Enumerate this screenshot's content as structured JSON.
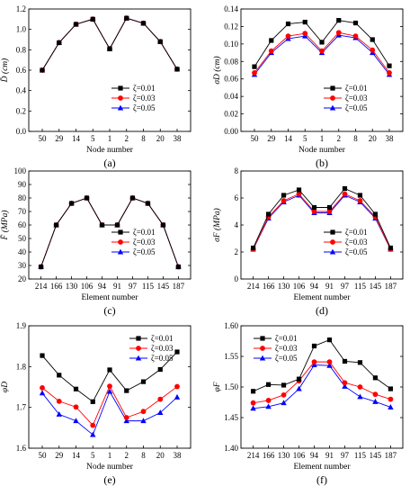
{
  "chart_data": [
    {
      "type": "line",
      "panel_label": "(a)",
      "categories": [
        "50",
        "29",
        "14",
        "5",
        "1",
        "2",
        "8",
        "20",
        "38"
      ],
      "xlabel": "Node number",
      "ylabel": "D̄ (cm)",
      "ylim": [
        0.0,
        1.2
      ],
      "yticks": [
        0.0,
        0.2,
        0.4,
        0.6,
        0.8,
        1.0,
        1.2
      ],
      "legend_position": "lower-center",
      "series": [
        {
          "name": "ζ=0.01",
          "color": "#000000",
          "marker": "square",
          "values": [
            0.6,
            0.87,
            1.05,
            1.1,
            0.81,
            1.11,
            1.06,
            0.88,
            0.61
          ]
        },
        {
          "name": "ζ=0.03",
          "color": "#ff0000",
          "marker": "circle",
          "values": [
            0.6,
            0.87,
            1.05,
            1.1,
            0.81,
            1.11,
            1.06,
            0.88,
            0.61
          ]
        },
        {
          "name": "ζ=0.05",
          "color": "#0000ff",
          "marker": "triangle",
          "values": [
            0.6,
            0.87,
            1.05,
            1.1,
            0.81,
            1.11,
            1.06,
            0.88,
            0.61
          ]
        }
      ]
    },
    {
      "type": "line",
      "panel_label": "(b)",
      "categories": [
        "50",
        "29",
        "14",
        "5",
        "1",
        "2",
        "8",
        "20",
        "38"
      ],
      "xlabel": "Node number",
      "ylabel": "σD (cm)",
      "ylim": [
        0.0,
        0.14
      ],
      "yticks": [
        0.0,
        0.02,
        0.04,
        0.06,
        0.08,
        0.1,
        0.12,
        0.14
      ],
      "legend_position": "lower-center",
      "series": [
        {
          "name": "ζ=0.01",
          "color": "#000000",
          "marker": "square",
          "values": [
            0.074,
            0.104,
            0.123,
            0.125,
            0.102,
            0.127,
            0.124,
            0.105,
            0.075
          ]
        },
        {
          "name": "ζ=0.03",
          "color": "#ff0000",
          "marker": "circle",
          "values": [
            0.067,
            0.092,
            0.109,
            0.112,
            0.092,
            0.113,
            0.109,
            0.093,
            0.067
          ]
        },
        {
          "name": "ζ=0.05",
          "color": "#0000ff",
          "marker": "triangle",
          "values": [
            0.065,
            0.09,
            0.106,
            0.109,
            0.09,
            0.11,
            0.107,
            0.09,
            0.065
          ]
        }
      ]
    },
    {
      "type": "line",
      "panel_label": "(c)",
      "categories": [
        "214",
        "166",
        "130",
        "106",
        "94",
        "91",
        "97",
        "115",
        "145",
        "187"
      ],
      "xlabel": "Element number",
      "ylabel": "F̄ (MPa)",
      "ylim": [
        20,
        100
      ],
      "yticks": [
        20,
        30,
        40,
        50,
        60,
        70,
        80,
        90,
        100
      ],
      "legend_position": "lower-center",
      "series": [
        {
          "name": "ζ=0.01",
          "color": "#000000",
          "marker": "square",
          "values": [
            29,
            60,
            76,
            80,
            60,
            60,
            80,
            76,
            60,
            29
          ]
        },
        {
          "name": "ζ=0.03",
          "color": "#ff0000",
          "marker": "circle",
          "values": [
            29,
            60,
            76,
            80,
            60,
            60,
            80,
            76,
            60,
            29
          ]
        },
        {
          "name": "ζ=0.05",
          "color": "#0000ff",
          "marker": "triangle",
          "values": [
            29,
            60,
            76,
            80,
            60,
            60,
            80,
            76,
            60,
            29
          ]
        }
      ]
    },
    {
      "type": "line",
      "panel_label": "(d)",
      "categories": [
        "214",
        "166",
        "130",
        "106",
        "94",
        "91",
        "97",
        "115",
        "145",
        "187"
      ],
      "xlabel": "Element number",
      "ylabel": "σF (MPa)",
      "ylim": [
        0,
        8
      ],
      "yticks": [
        0,
        2,
        4,
        6,
        8
      ],
      "legend_position": "lower-center",
      "series": [
        {
          "name": "ζ=0.01",
          "color": "#000000",
          "marker": "square",
          "values": [
            2.3,
            4.8,
            6.2,
            6.6,
            5.3,
            5.3,
            6.7,
            6.2,
            4.8,
            2.3
          ]
        },
        {
          "name": "ζ=0.03",
          "color": "#ff0000",
          "marker": "circle",
          "values": [
            2.2,
            4.6,
            5.8,
            6.3,
            5.0,
            5.0,
            6.3,
            5.8,
            4.6,
            2.2
          ]
        },
        {
          "name": "ζ=0.05",
          "color": "#0000ff",
          "marker": "triangle",
          "values": [
            2.2,
            4.5,
            5.7,
            6.2,
            4.9,
            4.9,
            6.2,
            5.7,
            4.5,
            2.2
          ]
        }
      ]
    },
    {
      "type": "line",
      "panel_label": "(e)",
      "categories": [
        "50",
        "29",
        "14",
        "5",
        "1",
        "2",
        "8",
        "20",
        "38"
      ],
      "xlabel": "Node number",
      "ylabel": "φD",
      "ylim": [
        1.6,
        1.9
      ],
      "yticks": [
        1.6,
        1.7,
        1.8,
        1.9
      ],
      "legend_position": "top-right",
      "series": [
        {
          "name": "ζ=0.01",
          "color": "#000000",
          "marker": "square",
          "values": [
            1.827,
            1.779,
            1.745,
            1.714,
            1.792,
            1.741,
            1.763,
            1.793,
            1.836
          ]
        },
        {
          "name": "ζ=0.03",
          "color": "#ff0000",
          "marker": "circle",
          "values": [
            1.748,
            1.715,
            1.701,
            1.656,
            1.752,
            1.675,
            1.69,
            1.72,
            1.751
          ]
        },
        {
          "name": "ζ=0.05",
          "color": "#0000ff",
          "marker": "triangle",
          "values": [
            1.735,
            1.683,
            1.667,
            1.633,
            1.739,
            1.667,
            1.667,
            1.687,
            1.725
          ]
        }
      ]
    },
    {
      "type": "line",
      "panel_label": "(f)",
      "categories": [
        "214",
        "166",
        "130",
        "106",
        "94",
        "91",
        "97",
        "115",
        "145",
        "187"
      ],
      "xlabel": "Element number",
      "ylabel": "φF",
      "ylim": [
        1.4,
        1.6
      ],
      "yticks": [
        1.4,
        1.45,
        1.5,
        1.55,
        1.6
      ],
      "legend_position": "top-left",
      "series": [
        {
          "name": "ζ=0.01",
          "color": "#000000",
          "marker": "square",
          "values": [
            1.493,
            1.504,
            1.503,
            1.513,
            1.567,
            1.577,
            1.542,
            1.54,
            1.515,
            1.497
          ]
        },
        {
          "name": "ζ=0.03",
          "color": "#ff0000",
          "marker": "circle",
          "values": [
            1.474,
            1.478,
            1.487,
            1.51,
            1.541,
            1.541,
            1.507,
            1.5,
            1.488,
            1.48
          ]
        },
        {
          "name": "ζ=0.05",
          "color": "#0000ff",
          "marker": "triangle",
          "values": [
            1.465,
            1.468,
            1.474,
            1.497,
            1.536,
            1.535,
            1.501,
            1.484,
            1.476,
            1.467
          ]
        }
      ]
    }
  ]
}
